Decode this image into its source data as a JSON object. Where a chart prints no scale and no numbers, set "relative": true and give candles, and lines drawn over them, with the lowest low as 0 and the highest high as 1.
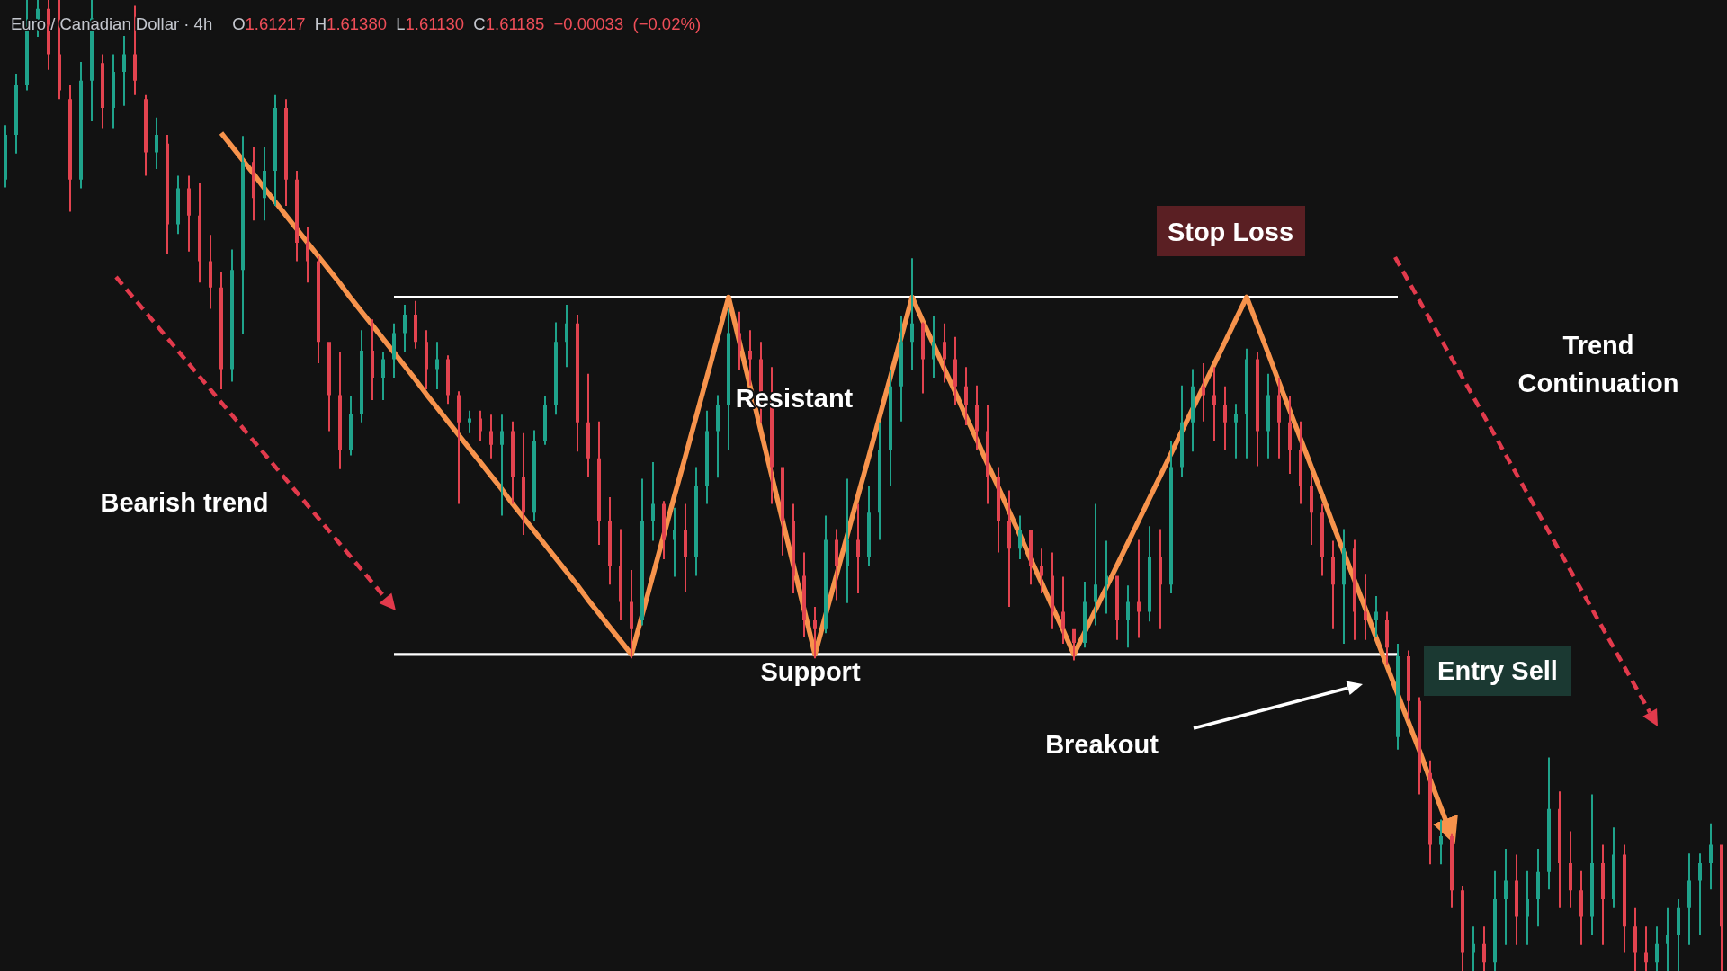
{
  "chart_data": {
    "type": "candlestick",
    "relative": true,
    "title": "Euro / Canadian Dollar · 4h",
    "subtitle": "O1.61217 H1.61380 L1.61130 C1.61185 −0.00033 (−0.02%)",
    "annotations": [
      "Bearish trend",
      "Resistant",
      "Support",
      "Stop Loss",
      "Entry Sell",
      "Breakout",
      "Trend Continuation"
    ],
    "categories": [
      null,
      null,
      null,
      null,
      null,
      null,
      null,
      null,
      null,
      null,
      null,
      null,
      null,
      null,
      null,
      null,
      null,
      null,
      null,
      null,
      null,
      null,
      null,
      null,
      null,
      null,
      null,
      null,
      null,
      null,
      null,
      null,
      null,
      null,
      null,
      null,
      null,
      null,
      null,
      null,
      null,
      null,
      null,
      null,
      null,
      null,
      null,
      null,
      null,
      null,
      null,
      null,
      null,
      null,
      null,
      null,
      null,
      null,
      null,
      null,
      null,
      null,
      null,
      null,
      null,
      null,
      null,
      null,
      null,
      null,
      null,
      null,
      null,
      null,
      null,
      null,
      null,
      null,
      null,
      null,
      null,
      null,
      null,
      null,
      null,
      null,
      null,
      null,
      null,
      null,
      null,
      null,
      null,
      null,
      null,
      null,
      null,
      null,
      null,
      null,
      null,
      null,
      null,
      null,
      null,
      null,
      null,
      null,
      null,
      null,
      null,
      null,
      null,
      null,
      null,
      null,
      null,
      null,
      null,
      null,
      null,
      null,
      null,
      null,
      null,
      null,
      null,
      null,
      null,
      null,
      null,
      null,
      null,
      null,
      null,
      null,
      null,
      null,
      null,
      null,
      null,
      null,
      null,
      null,
      null,
      null,
      null,
      null,
      null,
      null,
      null,
      null,
      null,
      null,
      null,
      null,
      null,
      null,
      null,
      null
    ],
    "ohlc": [
      [
        0.815,
        0.871,
        0.807,
        0.861
      ],
      [
        0.861,
        0.924,
        0.842,
        0.912
      ],
      [
        0.912,
        1,
        0.907,
        0.972
      ],
      [
        0.972,
        1,
        0.962,
        0.991
      ],
      [
        0.991,
        1,
        0.928,
        0.944
      ],
      [
        0.944,
        1,
        0.898,
        0.907
      ],
      [
        0.898,
        0.913,
        0.782,
        0.815
      ],
      [
        0.815,
        0.936,
        0.806,
        0.917
      ],
      [
        0.917,
        1,
        0.875,
        0.981
      ],
      [
        0.935,
        0.944,
        0.868,
        0.889
      ],
      [
        0.889,
        0.944,
        0.868,
        0.926
      ],
      [
        0.926,
        0.963,
        0.891,
        0.944
      ],
      [
        0.944,
        0.994,
        0.902,
        0.917
      ],
      [
        0.898,
        0.902,
        0.819,
        0.843
      ],
      [
        0.843,
        0.879,
        0.826,
        0.861
      ],
      [
        0.852,
        0.861,
        0.739,
        0.769
      ],
      [
        0.769,
        0.819,
        0.759,
        0.806
      ],
      [
        0.806,
        0.819,
        0.741,
        0.778
      ],
      [
        0.778,
        0.811,
        0.709,
        0.731
      ],
      [
        0.731,
        0.758,
        0.682,
        0.704
      ],
      [
        0.704,
        0.72,
        0.599,
        0.62
      ],
      [
        0.62,
        0.743,
        0.607,
        0.722
      ],
      [
        0.722,
        0.86,
        0.656,
        0.833
      ],
      [
        0.833,
        0.849,
        0.773,
        0.796
      ],
      [
        0.796,
        0.849,
        0.773,
        0.824
      ],
      [
        0.824,
        0.902,
        0.788,
        0.889
      ],
      [
        0.889,
        0.898,
        0.788,
        0.815
      ],
      [
        0.815,
        0.824,
        0.731,
        0.75
      ],
      [
        0.75,
        0.766,
        0.709,
        0.731
      ],
      [
        0.731,
        0.736,
        0.626,
        0.648
      ],
      [
        0.648,
        0.648,
        0.556,
        0.593
      ],
      [
        0.593,
        0.637,
        0.517,
        0.537
      ],
      [
        0.537,
        0.592,
        0.531,
        0.574
      ],
      [
        0.574,
        0.66,
        0.565,
        0.639
      ],
      [
        0.639,
        0.671,
        0.588,
        0.611
      ],
      [
        0.611,
        0.637,
        0.588,
        0.63
      ],
      [
        0.63,
        0.667,
        0.611,
        0.657
      ],
      [
        0.657,
        0.686,
        0.637,
        0.676
      ],
      [
        0.676,
        0.69,
        0.641,
        0.648
      ],
      [
        0.648,
        0.66,
        0.599,
        0.62
      ],
      [
        0.62,
        0.648,
        0.599,
        0.63
      ],
      [
        0.63,
        0.634,
        0.584,
        0.593
      ],
      [
        0.593,
        0.597,
        0.481,
        0.565
      ],
      [
        0.565,
        0.577,
        0.554,
        0.569
      ],
      [
        0.569,
        0.577,
        0.546,
        0.556
      ],
      [
        0.556,
        0.573,
        0.528,
        0.542
      ],
      [
        0.542,
        0.573,
        0.469,
        0.556
      ],
      [
        0.556,
        0.566,
        0.481,
        0.509
      ],
      [
        0.509,
        0.554,
        0.449,
        0.472
      ],
      [
        0.472,
        0.557,
        0.463,
        0.546
      ],
      [
        0.546,
        0.592,
        0.542,
        0.583
      ],
      [
        0.583,
        0.668,
        0.573,
        0.648
      ],
      [
        0.648,
        0.686,
        0.622,
        0.667
      ],
      [
        0.667,
        0.676,
        0.535,
        0.565
      ],
      [
        0.565,
        0.615,
        0.509,
        0.528
      ],
      [
        0.528,
        0.566,
        0.439,
        0.463
      ],
      [
        0.463,
        0.488,
        0.398,
        0.417
      ],
      [
        0.417,
        0.455,
        0.361,
        0.38
      ],
      [
        0.38,
        0.413,
        0.322,
        0.352
      ],
      [
        0.361,
        0.507,
        0.356,
        0.463
      ],
      [
        0.463,
        0.524,
        0.443,
        0.481
      ],
      [
        0.481,
        0.484,
        0.424,
        0.444
      ],
      [
        0.444,
        0.477,
        0.406,
        0.454
      ],
      [
        0.454,
        0.481,
        0.39,
        0.426
      ],
      [
        0.426,
        0.519,
        0.407,
        0.5
      ],
      [
        0.5,
        0.577,
        0.481,
        0.556
      ],
      [
        0.556,
        0.593,
        0.508,
        0.583
      ],
      [
        0.583,
        0.682,
        0.537,
        0.657
      ],
      [
        0.657,
        0.679,
        0.619,
        0.639
      ],
      [
        0.639,
        0.66,
        0.603,
        0.63
      ],
      [
        0.63,
        0.648,
        0.565,
        0.593
      ],
      [
        0.593,
        0.622,
        0.481,
        0.519
      ],
      [
        0.519,
        0.519,
        0.428,
        0.463
      ],
      [
        0.463,
        0.481,
        0.389,
        0.407
      ],
      [
        0.407,
        0.431,
        0.344,
        0.361
      ],
      [
        0.361,
        0.375,
        0.322,
        0.352
      ],
      [
        0.352,
        0.469,
        0.348,
        0.444
      ],
      [
        0.444,
        0.455,
        0.382,
        0.417
      ],
      [
        0.417,
        0.507,
        0.379,
        0.444
      ],
      [
        0.444,
        0.481,
        0.389,
        0.426
      ],
      [
        0.426,
        0.5,
        0.417,
        0.472
      ],
      [
        0.472,
        0.565,
        0.444,
        0.537
      ],
      [
        0.537,
        0.619,
        0.5,
        0.602
      ],
      [
        0.602,
        0.675,
        0.566,
        0.648
      ],
      [
        0.648,
        0.734,
        0.619,
        0.667
      ],
      [
        0.667,
        0.668,
        0.595,
        0.63
      ],
      [
        0.63,
        0.675,
        0.611,
        0.648
      ],
      [
        0.648,
        0.667,
        0.606,
        0.63
      ],
      [
        0.63,
        0.653,
        0.583,
        0.602
      ],
      [
        0.602,
        0.622,
        0.562,
        0.583
      ],
      [
        0.583,
        0.603,
        0.537,
        0.556
      ],
      [
        0.556,
        0.583,
        0.481,
        0.509
      ],
      [
        0.509,
        0.519,
        0.431,
        0.463
      ],
      [
        0.463,
        0.495,
        0.375,
        0.435
      ],
      [
        0.435,
        0.469,
        0.424,
        0.454
      ],
      [
        0.454,
        0.454,
        0.398,
        0.417
      ],
      [
        0.417,
        0.435,
        0.389,
        0.407
      ],
      [
        0.407,
        0.431,
        0.352,
        0.37
      ],
      [
        0.37,
        0.406,
        0.337,
        0.352
      ],
      [
        0.352,
        0.352,
        0.32,
        0.338
      ],
      [
        0.338,
        0.401,
        0.333,
        0.38
      ],
      [
        0.38,
        0.481,
        0.356,
        0.398
      ],
      [
        0.398,
        0.443,
        0.368,
        0.407
      ],
      [
        0.407,
        0.407,
        0.341,
        0.361
      ],
      [
        0.361,
        0.397,
        0.333,
        0.38
      ],
      [
        0.38,
        0.444,
        0.343,
        0.37
      ],
      [
        0.37,
        0.458,
        0.36,
        0.426
      ],
      [
        0.426,
        0.455,
        0.352,
        0.398
      ],
      [
        0.398,
        0.546,
        0.389,
        0.519
      ],
      [
        0.519,
        0.603,
        0.509,
        0.565
      ],
      [
        0.565,
        0.62,
        0.535,
        0.602
      ],
      [
        0.602,
        0.626,
        0.566,
        0.593
      ],
      [
        0.593,
        0.622,
        0.546,
        0.583
      ],
      [
        0.583,
        0.602,
        0.537,
        0.565
      ],
      [
        0.565,
        0.584,
        0.528,
        0.574
      ],
      [
        0.574,
        0.641,
        0.528,
        0.63
      ],
      [
        0.63,
        0.637,
        0.52,
        0.556
      ],
      [
        0.556,
        0.615,
        0.528,
        0.593
      ],
      [
        0.593,
        0.611,
        0.528,
        0.565
      ],
      [
        0.565,
        0.592,
        0.512,
        0.537
      ],
      [
        0.537,
        0.566,
        0.481,
        0.5
      ],
      [
        0.5,
        0.511,
        0.439,
        0.472
      ],
      [
        0.472,
        0.481,
        0.407,
        0.426
      ],
      [
        0.426,
        0.443,
        0.352,
        0.398
      ],
      [
        0.398,
        0.455,
        0.337,
        0.435
      ],
      [
        0.435,
        0.444,
        0.341,
        0.37
      ],
      [
        0.37,
        0.409,
        0.341,
        0.361
      ],
      [
        0.361,
        0.386,
        0.344,
        0.37
      ],
      [
        0.361,
        0.37,
        0.315,
        0.333
      ],
      [
        0.241,
        0.337,
        0.228,
        0.324
      ],
      [
        0.324,
        0.33,
        0.259,
        0.278
      ],
      [
        0.278,
        0.282,
        0.182,
        0.204
      ],
      [
        0.204,
        0.217,
        0.11,
        0.13
      ],
      [
        0.13,
        0.156,
        0.11,
        0.139
      ],
      [
        0.139,
        0.141,
        0.065,
        0.083
      ],
      [
        0.083,
        0.088,
        0,
        0.019
      ],
      [
        0.019,
        0.046,
        0,
        0.028
      ],
      [
        0.028,
        0.046,
        0,
        0.009
      ],
      [
        0.009,
        0.103,
        0,
        0.074
      ],
      [
        0.074,
        0.126,
        0.027,
        0.093
      ],
      [
        0.093,
        0.12,
        0.027,
        0.056
      ],
      [
        0.056,
        0.103,
        0.027,
        0.074
      ],
      [
        0.074,
        0.126,
        0.046,
        0.102
      ],
      [
        0.102,
        0.22,
        0.084,
        0.167
      ],
      [
        0.167,
        0.185,
        0.065,
        0.111
      ],
      [
        0.111,
        0.144,
        0.065,
        0.083
      ],
      [
        0.083,
        0.103,
        0.027,
        0.056
      ],
      [
        0.056,
        0.182,
        0.037,
        0.111
      ],
      [
        0.111,
        0.13,
        0.027,
        0.074
      ],
      [
        0.074,
        0.148,
        0.065,
        0.12
      ],
      [
        0.12,
        0.13,
        0.019,
        0.046
      ],
      [
        0.046,
        0.065,
        0,
        0.019
      ],
      [
        0.019,
        0.046,
        0,
        0.009
      ],
      [
        0.009,
        0.046,
        0,
        0.028
      ],
      [
        0.028,
        0.065,
        0,
        0.037
      ],
      [
        0.037,
        0.074,
        0,
        0.065
      ],
      [
        0.065,
        0.121,
        0.027,
        0.093
      ],
      [
        0.093,
        0.121,
        0.037,
        0.111
      ],
      [
        0.111,
        0.152,
        0.084,
        0.13
      ],
      [
        0.13,
        0.13,
        0,
        0.046
      ]
    ],
    "series": [
      {
        "type": "line",
        "color": "#ffffff",
        "values": [
          null,
          null,
          null,
          null,
          null,
          null,
          null,
          null,
          null,
          null,
          null,
          null,
          null,
          null,
          null,
          null,
          null,
          null,
          null,
          null,
          null,
          null,
          null,
          null,
          null,
          null,
          null,
          null,
          null,
          null,
          null,
          null,
          null,
          null,
          null,
          null,
          0.694,
          0.694,
          0.694,
          0.694,
          0.694,
          0.694,
          0.694,
          0.694,
          0.694,
          0.694,
          0.694,
          0.694,
          0.694,
          0.694,
          0.694,
          0.694,
          0.694,
          0.694,
          0.694,
          0.694,
          0.694,
          0.694,
          0.694,
          0.694,
          0.694,
          0.694,
          0.694,
          0.694,
          0.694,
          0.694,
          0.694,
          0.694,
          0.694,
          0.694,
          0.694,
          0.694,
          0.694,
          0.694,
          0.694,
          0.694,
          0.694,
          0.694,
          0.694,
          0.694,
          0.694,
          0.694,
          0.694,
          0.694,
          0.694,
          0.694,
          0.694,
          0.694,
          0.694,
          0.694,
          0.694,
          0.694,
          0.694,
          0.694,
          0.694,
          0.694,
          0.694,
          0.694,
          0.694,
          0.694,
          0.694,
          0.694,
          0.694,
          0.694,
          0.694,
          0.694,
          0.694,
          0.694,
          0.694,
          0.694,
          0.694,
          0.694,
          0.694,
          0.694,
          0.694,
          0.694,
          0.694,
          0.694,
          0.694,
          0.694,
          0.694,
          0.694,
          0.694,
          0.694,
          0.694,
          0.694,
          0.694,
          0.694,
          0.694,
          0.694,
          null,
          null,
          null,
          null,
          null,
          null,
          null,
          null,
          null,
          null,
          null,
          null,
          null,
          null,
          null,
          null,
          null,
          null,
          null,
          null,
          null,
          null,
          null,
          null,
          null,
          null,
          null,
          null,
          null,
          null
        ]
      },
      {
        "type": "line",
        "color": "#ffffff",
        "values": [
          null,
          null,
          null,
          null,
          null,
          null,
          null,
          null,
          null,
          null,
          null,
          null,
          null,
          null,
          null,
          null,
          null,
          null,
          null,
          null,
          null,
          null,
          null,
          null,
          null,
          null,
          null,
          null,
          null,
          null,
          null,
          null,
          null,
          null,
          null,
          null,
          0.326,
          0.326,
          0.326,
          0.326,
          0.326,
          0.326,
          0.326,
          0.326,
          0.326,
          0.326,
          0.326,
          0.326,
          0.326,
          0.326,
          0.326,
          0.326,
          0.326,
          0.326,
          0.326,
          0.326,
          0.326,
          0.326,
          0.326,
          0.326,
          0.326,
          0.326,
          0.326,
          0.326,
          0.326,
          0.326,
          0.326,
          0.326,
          0.326,
          0.326,
          0.326,
          0.326,
          0.326,
          0.326,
          0.326,
          0.326,
          0.326,
          0.326,
          0.326,
          0.326,
          0.326,
          0.326,
          0.326,
          0.326,
          0.326,
          0.326,
          0.326,
          0.326,
          0.326,
          0.326,
          0.326,
          0.326,
          0.326,
          0.326,
          0.326,
          0.326,
          0.326,
          0.326,
          0.326,
          0.326,
          0.326,
          0.326,
          0.326,
          0.326,
          0.326,
          0.326,
          0.326,
          0.326,
          0.326,
          0.326,
          0.326,
          0.326,
          0.326,
          0.326,
          0.326,
          0.326,
          0.326,
          0.326,
          0.326,
          0.326,
          0.326,
          0.326,
          0.326,
          0.326,
          0.326,
          0.326,
          0.326,
          0.326,
          0.326,
          0.326,
          null,
          null,
          null,
          null,
          null,
          null,
          null,
          null,
          null,
          null,
          null,
          null,
          null,
          null,
          null,
          null,
          null,
          null,
          null,
          null,
          null,
          null,
          null,
          null,
          null,
          null,
          null,
          null,
          null,
          null
        ]
      },
      {
        "type": "line",
        "color": "#f7934c",
        "values": [
          null,
          null,
          null,
          null,
          null,
          null,
          null,
          null,
          null,
          null,
          null,
          null,
          null,
          null,
          null,
          null,
          null,
          null,
          null,
          null,
          0.863,
          0.849,
          0.835,
          0.821,
          0.806,
          0.792,
          0.778,
          0.764,
          0.75,
          0.736,
          0.722,
          0.708,
          0.693,
          0.679,
          0.665,
          0.651,
          0.637,
          0.623,
          0.609,
          0.594,
          0.58,
          0.566,
          0.552,
          0.538,
          0.524,
          0.51,
          0.496,
          0.481,
          0.467,
          0.453,
          0.439,
          0.425,
          0.411,
          0.397,
          0.382,
          0.368,
          0.354,
          0.34,
          0.326,
          0.367,
          0.408,
          0.449,
          0.49,
          0.53,
          0.571,
          0.612,
          0.653,
          0.694,
          0.648,
          0.602,
          0.556,
          0.51,
          0.464,
          0.418,
          0.372,
          0.326,
          0.367,
          0.408,
          0.449,
          0.49,
          0.53,
          0.571,
          0.612,
          0.653,
          0.694,
          0.669,
          0.645,
          0.62,
          0.596,
          0.571,
          0.547,
          0.522,
          0.498,
          0.473,
          0.449,
          0.424,
          0.4,
          0.375,
          0.351,
          0.326,
          0.349,
          0.372,
          0.395,
          0.418,
          0.441,
          0.464,
          0.487,
          0.51,
          0.533,
          0.556,
          0.579,
          0.602,
          0.625,
          0.648,
          0.671,
          0.694,
          0.665,
          0.636,
          0.606,
          0.577,
          0.548,
          0.519,
          0.49,
          0.46,
          0.431,
          0.402,
          0.373,
          0.343,
          0.314,
          0.285,
          0.256,
          0.227,
          0.197,
          0.168,
          0.139,
          null,
          null,
          null,
          null,
          null,
          null,
          null,
          null,
          null,
          null,
          null,
          null,
          null,
          null,
          null,
          null,
          null,
          null,
          null,
          null,
          null,
          null,
          null,
          null,
          null
        ]
      }
    ]
  }
}
